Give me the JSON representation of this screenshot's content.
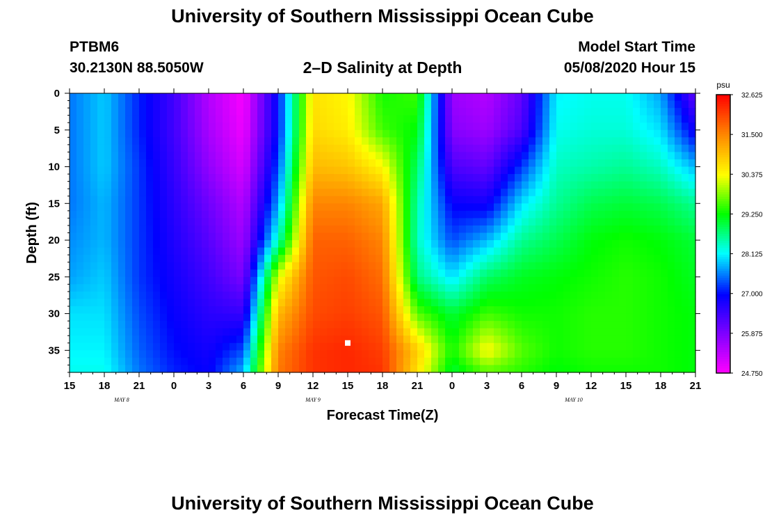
{
  "header": {
    "title": "University of Southern Mississippi Ocean Cube",
    "station": "PTBM6",
    "location": "30.2130N 88.5050W",
    "subtitle": "2–D Salinity at Depth",
    "model_label": "Model Start Time",
    "model_time": "05/08/2020 Hour 15"
  },
  "footer": {
    "title": "University of Southern Mississippi Ocean Cube"
  },
  "chart_data": {
    "type": "heatmap",
    "title": "2–D Salinity at Depth",
    "xlabel": "Forecast Time(Z)",
    "ylabel": "Depth (ft)",
    "x_ticks": [
      "15",
      "18",
      "21",
      "0",
      "3",
      "6",
      "9",
      "12",
      "15",
      "18",
      "21",
      "0",
      "3",
      "6",
      "9",
      "12",
      "15",
      "18",
      "21"
    ],
    "x_tick_hours": [
      0,
      3,
      6,
      9,
      12,
      15,
      18,
      21,
      24,
      27,
      30,
      33,
      36,
      39,
      42,
      45,
      48,
      51,
      54
    ],
    "xlim_hours": [
      0,
      54
    ],
    "dates": [
      {
        "label": "MAY 8",
        "hour": 4.5
      },
      {
        "label": "MAY 9",
        "hour": 21
      },
      {
        "label": "MAY 10",
        "hour": 43.5
      }
    ],
    "y_ticks": [
      "0",
      "5",
      "10",
      "15",
      "20",
      "25",
      "30",
      "35"
    ],
    "y_tick_values": [
      0,
      5,
      10,
      15,
      20,
      25,
      30,
      35
    ],
    "ylim": [
      0,
      38
    ],
    "colorbar": {
      "unit": "psu",
      "min": 24.75,
      "max": 32.625,
      "tick_labels": [
        "32.625",
        "31.500",
        "30.375",
        "29.250",
        "28.125",
        "27.000",
        "25.875",
        "24.750"
      ],
      "tick_values": [
        32.625,
        31.5,
        30.375,
        29.25,
        28.125,
        27.0,
        25.875,
        24.75
      ]
    },
    "marker": {
      "hour": 24,
      "depth": 34
    },
    "grid_hours": [
      0,
      3,
      6,
      9,
      12,
      15,
      18,
      21,
      24,
      27,
      30,
      33,
      36,
      39,
      42,
      45,
      48,
      51,
      54
    ],
    "grid_depths": [
      0,
      5,
      10,
      15,
      20,
      25,
      30,
      35,
      38
    ],
    "salinity_grid": [
      [
        27.5,
        27.9,
        27.1,
        26.4,
        25.4,
        24.8,
        27.0,
        30.6,
        30.4,
        29.3,
        29.5,
        25.6,
        25.4,
        26.1,
        28.1,
        28.2,
        28.2,
        27.7,
        26.1
      ],
      [
        27.5,
        27.9,
        27.1,
        26.4,
        25.5,
        24.9,
        27.0,
        30.7,
        30.5,
        29.5,
        29.2,
        25.8,
        25.6,
        26.3,
        28.2,
        28.3,
        28.3,
        28.0,
        26.8
      ],
      [
        27.5,
        27.9,
        27.2,
        26.5,
        25.7,
        25.1,
        27.3,
        31.0,
        30.9,
        30.4,
        28.8,
        26.3,
        26.1,
        27.2,
        28.4,
        28.5,
        28.6,
        28.4,
        27.8
      ],
      [
        27.5,
        27.8,
        27.2,
        26.6,
        26.0,
        25.4,
        27.7,
        31.5,
        31.5,
        31.2,
        28.5,
        26.9,
        26.8,
        28.0,
        28.6,
        28.9,
        29.0,
        28.9,
        28.6
      ],
      [
        27.6,
        27.8,
        27.2,
        26.7,
        26.2,
        25.6,
        28.4,
        31.8,
        31.8,
        31.5,
        28.4,
        27.3,
        27.8,
        28.6,
        28.9,
        29.2,
        29.3,
        29.2,
        29.0
      ],
      [
        27.7,
        27.9,
        27.2,
        26.8,
        26.4,
        25.9,
        30.2,
        31.9,
        32.0,
        31.7,
        28.7,
        28.0,
        28.8,
        29.1,
        29.2,
        29.3,
        29.4,
        29.3,
        29.1
      ],
      [
        28.0,
        28.0,
        27.3,
        26.9,
        26.6,
        26.5,
        31.0,
        32.0,
        32.1,
        31.9,
        29.6,
        29.0,
        29.5,
        29.3,
        29.3,
        29.4,
        29.4,
        29.3,
        29.2
      ],
      [
        28.1,
        28.1,
        27.4,
        27.0,
        26.8,
        27.3,
        31.5,
        32.2,
        32.3,
        32.1,
        30.8,
        29.3,
        30.4,
        29.6,
        29.3,
        29.4,
        29.4,
        29.3,
        29.2
      ],
      [
        28.2,
        28.2,
        27.5,
        27.1,
        26.9,
        27.8,
        31.6,
        32.2,
        32.3,
        32.2,
        30.6,
        29.0,
        29.6,
        29.4,
        29.2,
        29.3,
        29.3,
        29.3,
        29.2
      ]
    ]
  }
}
